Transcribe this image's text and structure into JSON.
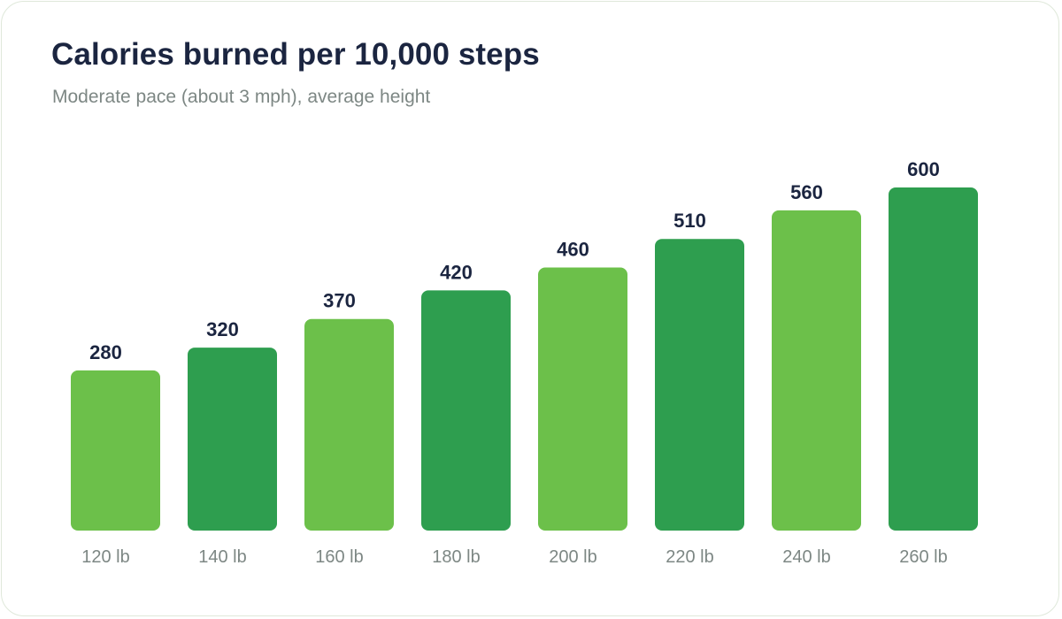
{
  "chart_data": {
    "type": "bar",
    "title": "Calories burned per 10,000 steps",
    "subtitle": "Moderate pace (about 3 mph), average height",
    "xlabel": "",
    "ylabel": "",
    "categories": [
      "120 lb",
      "140 lb",
      "160 lb",
      "180 lb",
      "200 lb",
      "220 lb",
      "240 lb",
      "260 lb"
    ],
    "values": [
      280,
      320,
      370,
      420,
      460,
      510,
      560,
      600
    ],
    "value_labels": [
      "280",
      "320",
      "370",
      "420",
      "460",
      "510",
      "560",
      "600"
    ],
    "ylim": [
      0,
      600
    ],
    "grid": false,
    "legend": "none",
    "colors": {
      "light_bar": "#6cc04a",
      "dark_bar": "#2e9e4f",
      "title": "#1b2540",
      "muted_text": "#7d8784",
      "card_border": "#dfe8da"
    }
  }
}
